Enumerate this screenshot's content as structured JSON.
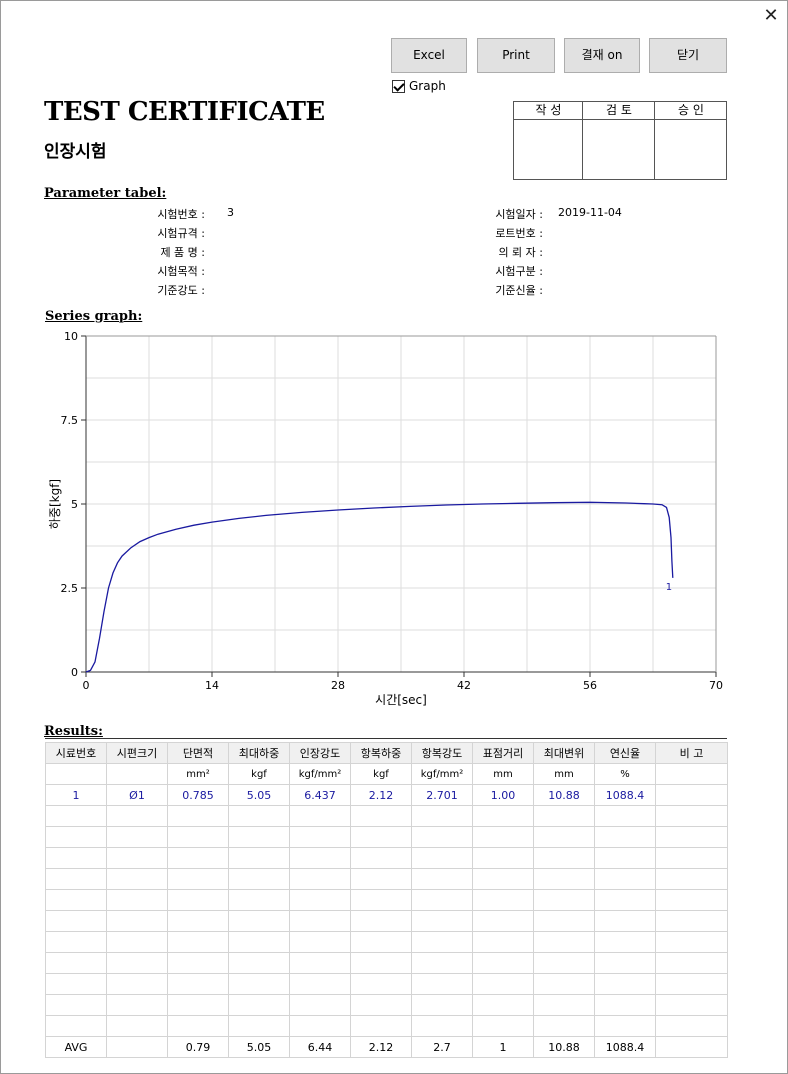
{
  "window": {
    "close_label": "✕"
  },
  "toolbar": {
    "buttons": [
      {
        "label": "Excel",
        "icon": ""
      },
      {
        "label": "Print",
        "icon": ""
      },
      {
        "label": "결재 on",
        "icon": ""
      },
      {
        "label": "닫기",
        "icon": ""
      }
    ],
    "graph_checkbox_label": "Graph",
    "graph_checked": true
  },
  "header": {
    "title": "TEST CERTIFICATE",
    "subtitle": "인장시험"
  },
  "approval": {
    "cols": [
      "작 성",
      "검 토",
      "승 인"
    ]
  },
  "parameters": {
    "section_title": "Parameter tabel:",
    "left": [
      {
        "label": "시험번호 :",
        "value": "3"
      },
      {
        "label": "시험규격 :",
        "value": ""
      },
      {
        "label": "제 품 명 :",
        "value": ""
      },
      {
        "label": "시험목적 :",
        "value": ""
      },
      {
        "label": "기준강도 :",
        "value": ""
      }
    ],
    "right": [
      {
        "label": "시험일자 :",
        "value": "2019-11-04"
      },
      {
        "label": "로트번호 :",
        "value": ""
      },
      {
        "label": "의 뢰 자 :",
        "value": ""
      },
      {
        "label": "시험구분 :",
        "value": ""
      },
      {
        "label": "기준신율 :",
        "value": ""
      }
    ]
  },
  "graph": {
    "section_title": "Series graph:"
  },
  "chart_data": {
    "type": "line",
    "xlabel": "시간[sec]",
    "ylabel": "하중[kgf]",
    "xlim": [
      0,
      70
    ],
    "ylim": [
      0,
      10
    ],
    "x_ticks": [
      "0",
      "14",
      "28",
      "42",
      "56",
      "70"
    ],
    "y_ticks": [
      "0",
      "2.5",
      "5",
      "7.5",
      "10"
    ],
    "grid": true,
    "series_color": "#1a1aa0",
    "series": [
      {
        "name": "1",
        "x": [
          0,
          0.5,
          1,
          1.5,
          2,
          2.5,
          3,
          3.5,
          4,
          5,
          6,
          7,
          8,
          10,
          12,
          14,
          17,
          20,
          24,
          28,
          32,
          36,
          40,
          44,
          48,
          52,
          56,
          60,
          62,
          63,
          64,
          64.5,
          64.8,
          65,
          65.1,
          65.2
        ],
        "y": [
          0,
          0.05,
          0.3,
          1.0,
          1.8,
          2.5,
          2.95,
          3.25,
          3.45,
          3.7,
          3.88,
          4.0,
          4.1,
          4.25,
          4.37,
          4.46,
          4.57,
          4.66,
          4.75,
          4.82,
          4.88,
          4.93,
          4.97,
          5.0,
          5.02,
          5.04,
          5.05,
          5.03,
          5.01,
          5.0,
          4.98,
          4.9,
          4.6,
          4.0,
          3.3,
          2.8
        ]
      }
    ],
    "end_label": "1"
  },
  "results": {
    "section_title": "Results:",
    "headers": [
      "시료번호",
      "시편크기",
      "단면적",
      "최대하중",
      "인장강도",
      "항복하중",
      "항복강도",
      "표점거리",
      "최대변위",
      "연신율",
      "비  고"
    ],
    "units": [
      "",
      "",
      "mm²",
      "kgf",
      "kgf/mm²",
      "kgf",
      "kgf/mm²",
      "mm",
      "mm",
      "%",
      ""
    ],
    "rows": [
      [
        "1",
        "Ø1",
        "0.785",
        "5.05",
        "6.437",
        "2.12",
        "2.701",
        "1.00",
        "10.88",
        "1088.4",
        ""
      ]
    ],
    "empty_rows": 11,
    "avg": [
      "AVG",
      "",
      "0.79",
      "5.05",
      "6.44",
      "2.12",
      "2.7",
      "1",
      "10.88",
      "1088.4",
      ""
    ]
  }
}
